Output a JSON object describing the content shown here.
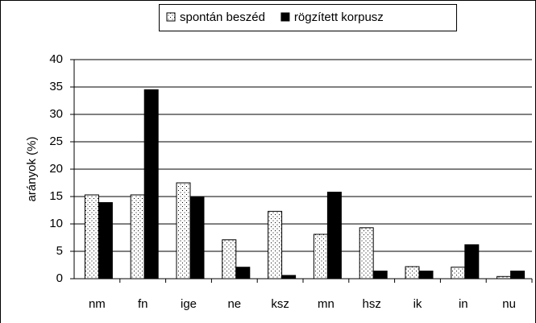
{
  "chart_data": {
    "type": "bar",
    "y_label": "arányok (%)",
    "categories": [
      "nm",
      "fn",
      "ige",
      "ne",
      "ksz",
      "mn",
      "hsz",
      "ik",
      "in",
      "nu"
    ],
    "series": [
      {
        "name": "spontán beszéd",
        "color": "#ffffff",
        "values": [
          15.3,
          15.3,
          17.5,
          7.1,
          12.3,
          8.1,
          9.3,
          2.2,
          2.1,
          0.4
        ]
      },
      {
        "name": "rögzített korpusz",
        "color": "#000000",
        "values": [
          13.9,
          34.5,
          15,
          2.1,
          0.6,
          15.8,
          1.4,
          1.4,
          6.2,
          1.4
        ]
      }
    ],
    "ylim": [
      0,
      40
    ],
    "yticks": [
      0,
      5,
      10,
      15,
      20,
      25,
      30,
      35,
      40
    ],
    "grid": true,
    "legend": "top"
  }
}
